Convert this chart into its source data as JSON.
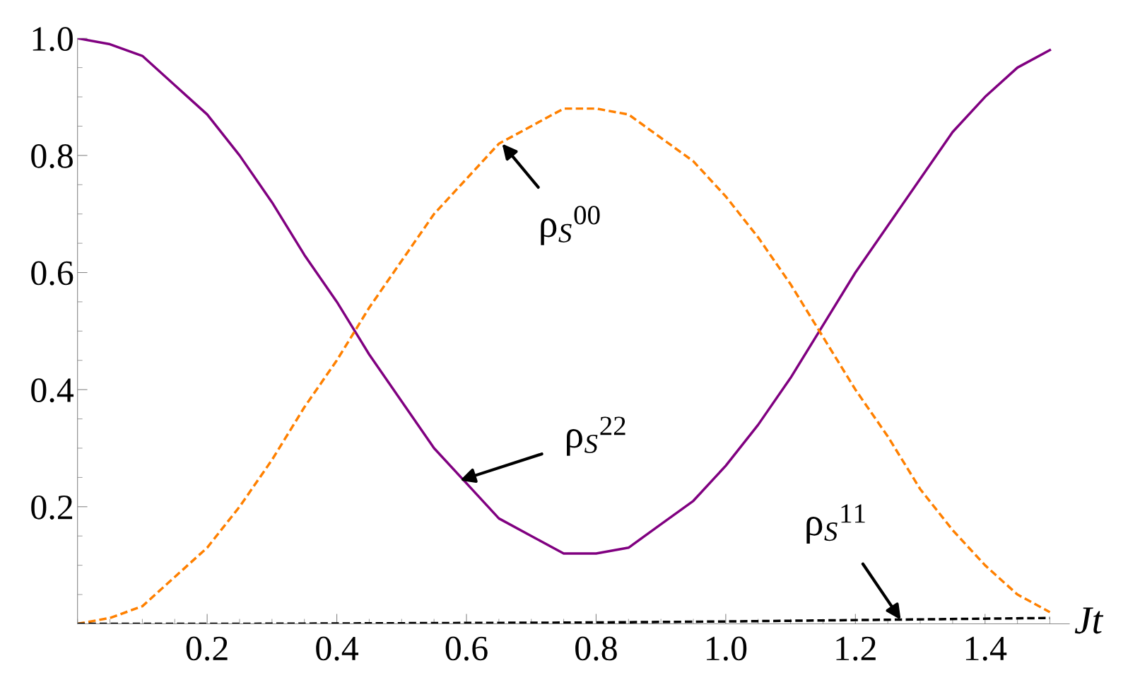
{
  "chart_data": {
    "type": "line",
    "xlabel": "Jt",
    "x": [
      0,
      0.05,
      0.1,
      0.15,
      0.2,
      0.25,
      0.3,
      0.35,
      0.4,
      0.45,
      0.5,
      0.55,
      0.6,
      0.65,
      0.7,
      0.75,
      0.8,
      0.85,
      0.9,
      0.95,
      1.0,
      1.05,
      1.1,
      1.15,
      1.2,
      1.25,
      1.3,
      1.35,
      1.4,
      1.45,
      1.5
    ],
    "series": [
      {
        "color": "#800080",
        "line_style": "solid",
        "values": [
          1,
          0.99,
          0.97,
          0.92,
          0.87,
          0.8,
          0.72,
          0.63,
          0.55,
          0.46,
          0.38,
          0.3,
          0.24,
          0.18,
          0.15,
          0.12,
          0.12,
          0.13,
          0.17,
          0.21,
          0.27,
          0.34,
          0.42,
          0.51,
          0.6,
          0.68,
          0.76,
          0.84,
          0.9,
          0.95,
          0.98
        ]
      },
      {
        "color": "#ff8000",
        "line_style": "dashed",
        "values": [
          0,
          0.01,
          0.03,
          0.08,
          0.13,
          0.2,
          0.28,
          0.37,
          0.45,
          0.54,
          0.62,
          0.7,
          0.76,
          0.82,
          0.85,
          0.88,
          0.88,
          0.87,
          0.83,
          0.79,
          0.73,
          0.66,
          0.58,
          0.49,
          0.4,
          0.32,
          0.23,
          0.16,
          0.1,
          0.05,
          0.02
        ]
      },
      {
        "color": "#000000",
        "line_style": "dashed",
        "x": [
          0,
          0.25,
          0.5,
          0.75,
          1.0,
          1.25,
          1.5
        ],
        "values": [
          0,
          0,
          0.001,
          0.002,
          0.004,
          0.007,
          0.01
        ]
      }
    ],
    "xlim": [
      0,
      1.53
    ],
    "ylim": [
      0,
      1.0
    ],
    "xticks": [
      0.2,
      0.4,
      0.6,
      0.8,
      {
        "value": 1,
        "label": "1.0"
      },
      1.2,
      1.4
    ],
    "yticks": [
      0.2,
      0.4,
      0.6,
      0.8,
      {
        "value": 1,
        "label": "1.0"
      }
    ],
    "annotations": [
      {
        "text": "ρ$_{S}$$^{00}$",
        "x": 0.655,
        "y": 0.82
      },
      {
        "text": "ρ$_{S}$$^{22}$",
        "x": 0.59,
        "y": 0.245
      },
      {
        "text": "ρ$_{S}$$^{11}$",
        "x": 1.27,
        "y": 0.007
      }
    ]
  }
}
